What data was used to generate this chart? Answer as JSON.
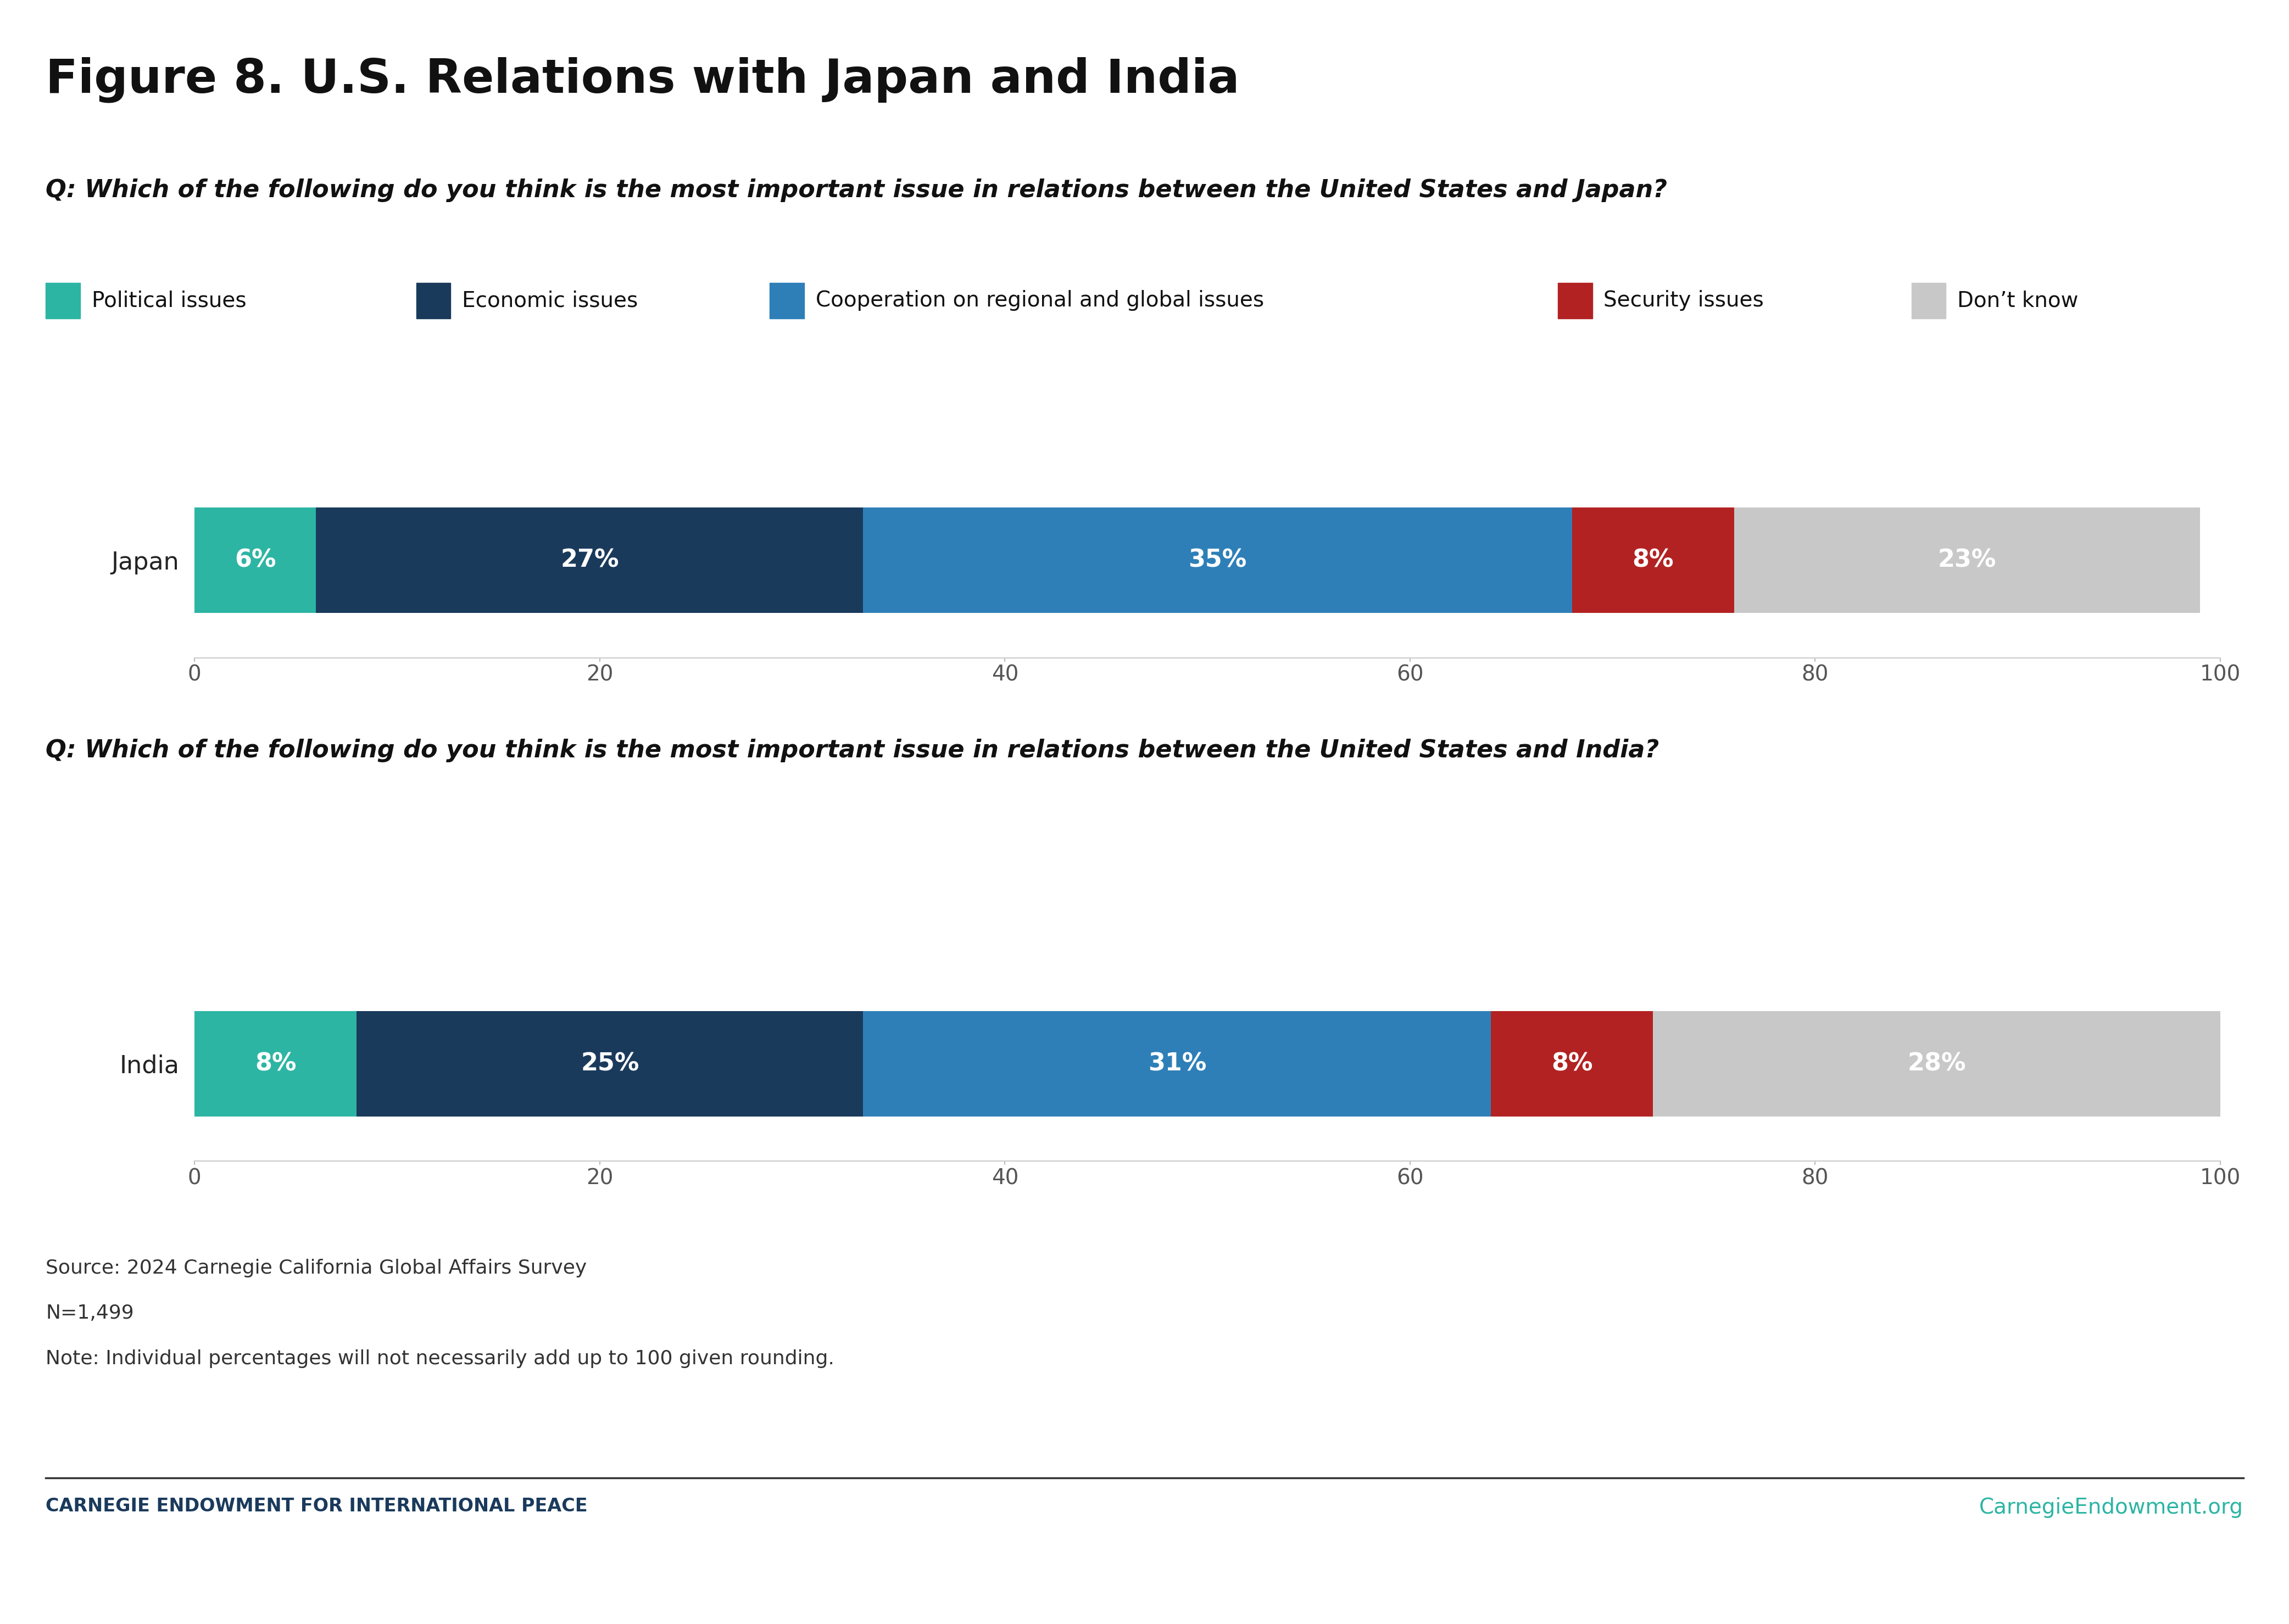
{
  "title": "Figure 8. U.S. Relations with Japan and India",
  "question1": "Q: Which of the following do you think is the most important issue in relations between the United States and Japan?",
  "question2": "Q: Which of the following do you think is the most important issue in relations between the United States and India?",
  "categories": [
    "Political issues",
    "Economic issues",
    "Cooperation on regional and global issues",
    "Security issues",
    "Don’t know"
  ],
  "colors": [
    "#2db5a3",
    "#1a3a5c",
    "#2e7fb8",
    "#b22222",
    "#c8c8c8"
  ],
  "japan_values": [
    6,
    27,
    35,
    8,
    23
  ],
  "india_values": [
    8,
    25,
    31,
    8,
    28
  ],
  "japan_label": "Japan",
  "india_label": "India",
  "source_lines": [
    "Source: 2024 Carnegie California Global Affairs Survey",
    "N=1,499",
    "Note: Individual percentages will not necessarily add up to 100 given rounding."
  ],
  "footer_left": "CARNEGIE ENDOWMENT FOR INTERNATIONAL PEACE",
  "footer_right": "CarnegieEndowment.org",
  "footer_color": "#1a3a5c",
  "footer_right_color": "#2db5a3",
  "background_color": "#ffffff",
  "xlim": [
    0,
    100
  ],
  "xticks": [
    0,
    20,
    40,
    60,
    80,
    100
  ]
}
